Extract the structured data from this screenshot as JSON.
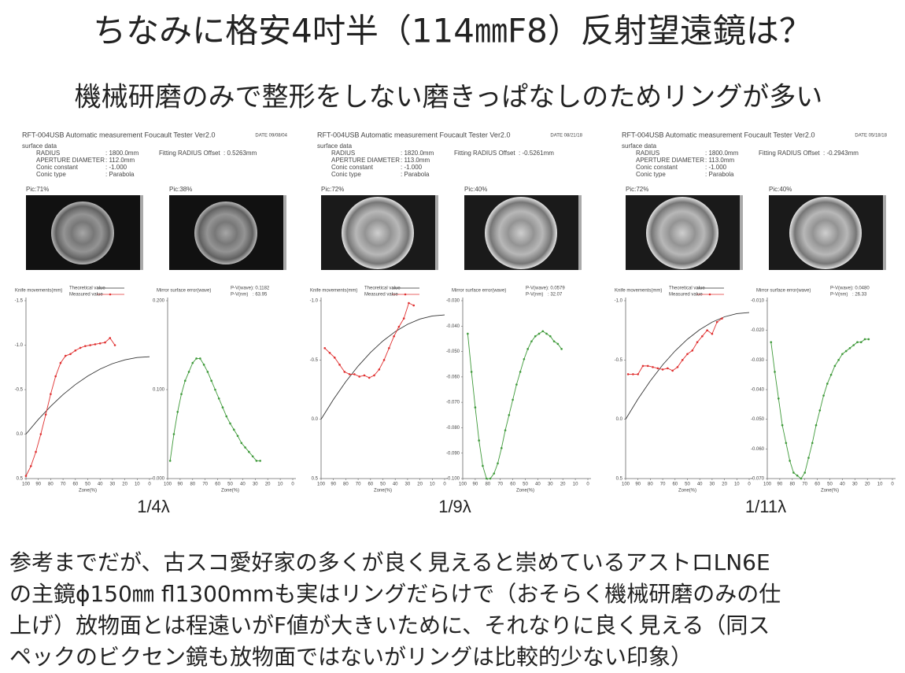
{
  "title": "ちなみに格安4吋半（114㎜F8）反射望遠鏡は？",
  "subtitle": "機械研磨のみで整形をしない磨きっぱなしのためリングが多い",
  "panels": [
    {
      "header": "RFT-004USB Automatic measurement Foucault Tester Ver2.0",
      "date": "DATE 09/08/04",
      "surface_label": "surface data",
      "fields": [
        {
          "label": "RADIUS",
          "value": ": 1800.0mm"
        },
        {
          "label": "APERTURE DIAMETER",
          "value": ": 112.0mm"
        },
        {
          "label": "Conic constant",
          "value": ": -1.000"
        },
        {
          "label": "Conic type",
          "value": ": Parabola"
        }
      ],
      "fitting": {
        "label": "Fitting RADIUS Offset",
        "value": ": 0.5263mm"
      },
      "pics": [
        "Pic:71%",
        "Pic:38%"
      ],
      "knife_chart": {
        "y_label": "Knife movements(mm)",
        "x_label": "Zone(%)",
        "xlim": [
          100,
          0
        ],
        "xticks": [
          100,
          90,
          80,
          70,
          60,
          50,
          40,
          30,
          20,
          10,
          0
        ],
        "ylim": [
          -1.5,
          0.5
        ],
        "y_reversed": true,
        "yticks": [
          {
            "value": -1.5,
            "label": "-1.5"
          },
          {
            "value": -1,
            "label": "-1.0"
          },
          {
            "value": -0.5,
            "label": "-0.5"
          },
          {
            "value": 0,
            "label": "0.0"
          },
          {
            "value": 0.5,
            "label": "0.5"
          }
        ],
        "series": [
          {
            "name": "Theoretical value",
            "color": "#333333",
            "markers": false,
            "x": [
              100,
              90,
              80,
              70,
              60,
              50,
              40,
              30,
              20,
              10,
              0
            ],
            "values": [
              0,
              -0.165,
              -0.313,
              -0.444,
              -0.557,
              -0.653,
              -0.731,
              -0.792,
              -0.835,
              -0.861,
              -0.87
            ]
          },
          {
            "name": "Measured value",
            "color": "#e03030",
            "markers": true,
            "x": [
              100,
              96,
              92,
              88,
              84,
              80,
              76,
              72,
              68,
              64,
              60,
              56,
              52,
              48,
              44,
              40,
              36,
              32,
              28
            ],
            "values": [
              0.47,
              0.36,
              0.2,
              0,
              -0.22,
              -0.45,
              -0.65,
              -0.8,
              -0.88,
              -0.9,
              -0.94,
              -0.97,
              -0.99,
              -1,
              -1.01,
              -1.02,
              -1.03,
              -1.08,
              -1
            ]
          }
        ]
      },
      "error_chart": {
        "y_label": "Mirror surface error(wave)",
        "pv": [
          {
            "label": "P-V(wave)",
            "value": ": 0.1182"
          },
          {
            "label": "P-V(nm)",
            "value": ": 63.95"
          }
        ],
        "x_label": "Zone(%)",
        "xlim": [
          100,
          0
        ],
        "xticks": [
          100,
          90,
          80,
          70,
          60,
          50,
          40,
          30,
          20,
          10,
          0
        ],
        "ylim": [
          0,
          0.2
        ],
        "yticks": [
          {
            "value": 0,
            "label": "0.000"
          },
          {
            "value": 0.1,
            "label": "0.100"
          },
          {
            "value": 0.2,
            "label": "0.200"
          }
        ],
        "series": [
          {
            "color": "#3f9a3a",
            "markers": true,
            "x": [
              98,
              95,
              92,
              89,
              86,
              83,
              80,
              77,
              74,
              71,
              68,
              65,
              62,
              59,
              56,
              53,
              50,
              47,
              44,
              41,
              38,
              35,
              32,
              29,
              26
            ],
            "values": [
              0.02,
              0.05,
              0.075,
              0.095,
              0.11,
              0.12,
              0.13,
              0.135,
              0.135,
              0.128,
              0.12,
              0.11,
              0.1,
              0.09,
              0.08,
              0.07,
              0.062,
              0.055,
              0.048,
              0.04,
              0.035,
              0.03,
              0.025,
              0.02,
              0.02
            ]
          }
        ]
      },
      "rating": "1/4λ"
    },
    {
      "header": "RFT-004USB Automatic measurement Foucault Tester Ver2.0",
      "date": "DATE 08/21/18",
      "surface_label": "surface data",
      "fields": [
        {
          "label": "RADIUS",
          "value": ": 1820.0mm"
        },
        {
          "label": "APERTURE DIAMETER",
          "value": ": 113.0mm"
        },
        {
          "label": "Conic constant",
          "value": ": -1.000"
        },
        {
          "label": "Conic type",
          "value": ": Parabola"
        }
      ],
      "fitting": {
        "label": "Fitting RADIUS Offset",
        "value": ": -0.5261mm"
      },
      "pics": [
        "Pic:72%",
        "Pic:40%"
      ],
      "knife_chart": {
        "y_label": "Knife movements(mm)",
        "x_label": "Zone(%)",
        "xlim": [
          100,
          0
        ],
        "xticks": [
          100,
          90,
          80,
          70,
          60,
          50,
          40,
          30,
          20,
          10,
          0
        ],
        "ylim": [
          -1,
          0.5
        ],
        "y_reversed": true,
        "yticks": [
          {
            "value": -1,
            "label": "-1.0"
          },
          {
            "value": -0.5,
            "label": "-0.5"
          },
          {
            "value": 0,
            "label": "0.0"
          },
          {
            "value": 0.5,
            "label": "0.5"
          }
        ],
        "series": [
          {
            "name": "Theoretical value",
            "color": "#333333",
            "markers": false,
            "x": [
              100,
              90,
              80,
              70,
              60,
              50,
              40,
              30,
              20,
              10,
              0
            ],
            "values": [
              0,
              -0.167,
              -0.317,
              -0.449,
              -0.563,
              -0.66,
              -0.739,
              -0.801,
              -0.845,
              -0.871,
              -0.88
            ]
          },
          {
            "name": "Measured value",
            "color": "#e03030",
            "markers": true,
            "x": [
              97,
              93,
              89,
              85,
              81,
              77,
              73,
              69,
              65,
              61,
              57,
              53,
              49,
              45,
              41,
              37,
              33,
              29,
              25
            ],
            "values": [
              -0.6,
              -0.56,
              -0.52,
              -0.46,
              -0.4,
              -0.38,
              -0.38,
              -0.36,
              -0.37,
              -0.35,
              -0.37,
              -0.42,
              -0.5,
              -0.6,
              -0.7,
              -0.78,
              -0.85,
              -0.98,
              -0.96
            ]
          }
        ]
      },
      "error_chart": {
        "y_label": "Mirror surface error(wave)",
        "pv": [
          {
            "label": "P-V(wave)",
            "value": ": 0.0579"
          },
          {
            "label": "P-V(nm)",
            "value": ": 32.07"
          }
        ],
        "x_label": "Zone(%)",
        "xlim": [
          100,
          0
        ],
        "xticks": [
          100,
          90,
          80,
          70,
          60,
          50,
          40,
          30,
          20,
          10,
          0
        ],
        "ylim": [
          -0.1,
          -0.03
        ],
        "yticks": [
          {
            "value": -0.1,
            "label": "-0.100"
          },
          {
            "value": -0.09,
            "label": "-0.090"
          },
          {
            "value": -0.08,
            "label": "-0.080"
          },
          {
            "value": -0.07,
            "label": "-0.070"
          },
          {
            "value": -0.06,
            "label": "-0.060"
          },
          {
            "value": -0.05,
            "label": "-0.050"
          },
          {
            "value": -0.04,
            "label": "-0.040"
          },
          {
            "value": -0.03,
            "label": "-0.030"
          }
        ],
        "series": [
          {
            "color": "#3f9a3a",
            "markers": true,
            "x": [
              96,
              93,
              90,
              87,
              84,
              81,
              78,
              75,
              72,
              69,
              66,
              63,
              60,
              57,
              54,
              51,
              48,
              45,
              42,
              39,
              36,
              33,
              30,
              27,
              24,
              21
            ],
            "values": [
              -0.043,
              -0.058,
              -0.072,
              -0.085,
              -0.095,
              -0.1,
              -0.1,
              -0.098,
              -0.094,
              -0.088,
              -0.081,
              -0.075,
              -0.069,
              -0.063,
              -0.058,
              -0.053,
              -0.049,
              -0.046,
              -0.044,
              -0.043,
              -0.042,
              -0.043,
              -0.044,
              -0.046,
              -0.047,
              -0.049
            ]
          }
        ]
      },
      "rating": "1/9λ"
    },
    {
      "header": "RFT-004USB Automatic measurement Foucault Tester Ver2.0",
      "date": "DATE 05/18/18",
      "surface_label": "surface data",
      "fields": [
        {
          "label": "RADIUS",
          "value": ": 1800.0mm"
        },
        {
          "label": "APERTURE DIAMETER",
          "value": ": 113.0mm"
        },
        {
          "label": "Conic constant",
          "value": ": -1.000"
        },
        {
          "label": "Conic type",
          "value": ": Parabola"
        }
      ],
      "fitting": {
        "label": "Fitting RADIUS Offset",
        "value": ": -0.2943mm"
      },
      "pics": [
        "Pic:72%",
        "Pic:40%"
      ],
      "knife_chart": {
        "y_label": "Knife movements(mm)",
        "x_label": "Zone(%)",
        "xlim": [
          100,
          0
        ],
        "xticks": [
          100,
          90,
          80,
          70,
          60,
          50,
          40,
          30,
          20,
          10,
          0
        ],
        "ylim": [
          -1,
          0.5
        ],
        "y_reversed": true,
        "yticks": [
          {
            "value": -1,
            "label": "-1.0"
          },
          {
            "value": -0.5,
            "label": "-0.5"
          },
          {
            "value": 0,
            "label": "0.0"
          },
          {
            "value": 0.5,
            "label": "0.5"
          }
        ],
        "series": [
          {
            "name": "Theoretical value",
            "color": "#333333",
            "markers": false,
            "x": [
              100,
              90,
              80,
              70,
              60,
              50,
              40,
              30,
              20,
              10,
              0
            ],
            "values": [
              0,
              -0.171,
              -0.324,
              -0.459,
              -0.576,
              -0.675,
              -0.756,
              -0.819,
              -0.864,
              -0.891,
              -0.9
            ]
          },
          {
            "name": "Measured value",
            "color": "#e03030",
            "markers": true,
            "x": [
              98,
              94,
              90,
              86,
              82,
              78,
              74,
              70,
              66,
              62,
              58,
              54,
              50,
              46,
              42,
              38,
              34,
              30,
              26,
              22
            ],
            "values": [
              -0.38,
              -0.38,
              -0.38,
              -0.45,
              -0.45,
              -0.44,
              -0.43,
              -0.42,
              -0.43,
              -0.41,
              -0.44,
              -0.5,
              -0.55,
              -0.58,
              -0.65,
              -0.7,
              -0.75,
              -0.72,
              -0.82,
              -0.85
            ]
          }
        ]
      },
      "error_chart": {
        "y_label": "Mirror surface error(wave)",
        "pv": [
          {
            "label": "P-V(wave)",
            "value": ": 0.0480"
          },
          {
            "label": "P-V(nm)",
            "value": ": 26.33"
          }
        ],
        "x_label": "Zone(%)",
        "xlim": [
          100,
          0
        ],
        "xticks": [
          100,
          90,
          80,
          70,
          60,
          50,
          40,
          30,
          20,
          10,
          0
        ],
        "ylim": [
          -0.07,
          -0.01
        ],
        "yticks": [
          {
            "value": -0.07,
            "label": "-0.070"
          },
          {
            "value": -0.06,
            "label": "-0.060"
          },
          {
            "value": -0.05,
            "label": "-0.050"
          },
          {
            "value": -0.04,
            "label": "-0.040"
          },
          {
            "value": -0.03,
            "label": "-0.030"
          },
          {
            "value": -0.02,
            "label": "-0.020"
          },
          {
            "value": -0.01,
            "label": "-0.010"
          }
        ],
        "series": [
          {
            "color": "#3f9a3a",
            "markers": true,
            "x": [
              97,
              94,
              91,
              88,
              85,
              82,
              79,
              76,
              73,
              70,
              67,
              64,
              61,
              58,
              55,
              52,
              49,
              46,
              43,
              40,
              37,
              34,
              31,
              28,
              25,
              22,
              19
            ],
            "values": [
              -0.024,
              -0.034,
              -0.043,
              -0.052,
              -0.058,
              -0.064,
              -0.068,
              -0.069,
              -0.07,
              -0.068,
              -0.063,
              -0.058,
              -0.052,
              -0.047,
              -0.042,
              -0.038,
              -0.035,
              -0.032,
              -0.03,
              -0.028,
              -0.027,
              -0.026,
              -0.025,
              -0.024,
              -0.024,
              -0.023,
              -0.023
            ]
          }
        ]
      },
      "rating": "1/11λ"
    }
  ],
  "notes": [
    "参考までだが、古スコ愛好家の多くが良く見えると崇めているアストロLN6E",
    "の主鏡ϕ150㎜ fl1300mmも実はリングだらけで（おそらく機械研磨のみの仕",
    "上げ）放物面とは程遠いがF値が大きいために、それなりに良く見える（同ス",
    "ペックのビクセン鏡も放物面ではないがリングは比較的少ない印象）"
  ]
}
